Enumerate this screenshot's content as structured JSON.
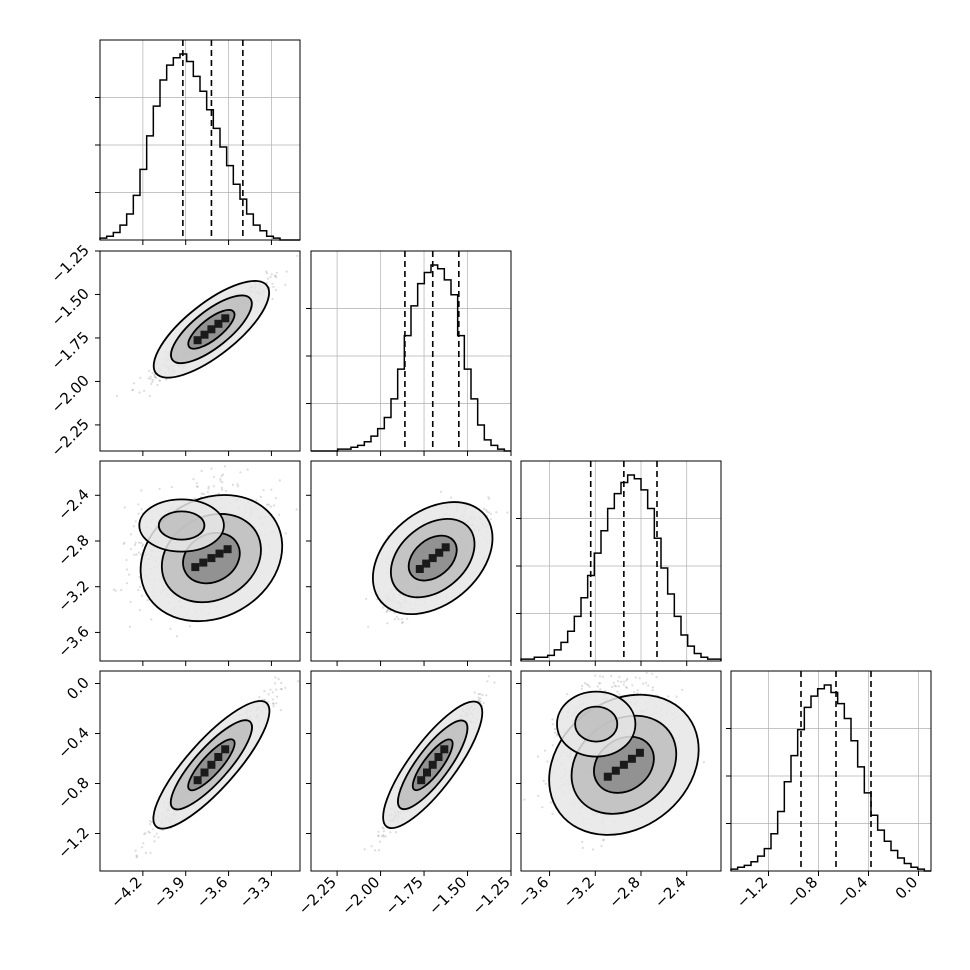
{
  "chart_data": {
    "type": "corner",
    "n_params": 4,
    "params": [
      {
        "range": [
          -4.5,
          -3.1
        ],
        "ticks": [
          -4.2,
          -3.9,
          -3.6,
          -3.3
        ],
        "tick_labels": [
          "−4.2",
          "−3.9",
          "−3.6",
          "−3.3"
        ],
        "mean": -3.72,
        "sd": 0.19,
        "quantiles": [
          -3.92,
          -3.72,
          -3.5
        ]
      },
      {
        "range": [
          -2.4,
          -1.25
        ],
        "ticks": [
          -2.25,
          -2.0,
          -1.75,
          -1.5,
          -1.25
        ],
        "tick_labels": [
          "−2.25",
          "−2.00",
          "−1.75",
          "−1.50",
          "−1.25"
        ],
        "mean": -1.7,
        "sd": 0.13,
        "quantiles": [
          -1.86,
          -1.7,
          -1.55
        ]
      },
      {
        "range": [
          -3.85,
          -2.1
        ],
        "ticks": [
          -3.6,
          -3.2,
          -2.8,
          -2.4
        ],
        "tick_labels": [
          "−3.6",
          "−3.2",
          "−2.8",
          "−2.4"
        ],
        "mean": -2.95,
        "sd": 0.22,
        "quantiles": [
          -3.24,
          -2.95,
          -2.66
        ]
      },
      {
        "range": [
          -1.5,
          0.1
        ],
        "ticks": [
          -1.2,
          -0.8,
          -0.4,
          0.0
        ],
        "tick_labels": [
          "−1.2",
          "−0.8",
          "−0.4",
          "0.0"
        ],
        "mean": -0.65,
        "sd": 0.25,
        "quantiles": [
          -0.94,
          -0.66,
          -0.38
        ]
      }
    ],
    "histograms": [
      {
        "param": 0,
        "bins": 30,
        "counts": [
          1,
          2,
          4,
          8,
          14,
          24,
          38,
          56,
          72,
          86,
          94,
          98,
          100,
          96,
          88,
          80,
          70,
          60,
          50,
          40,
          30,
          22,
          14,
          8,
          5,
          2,
          1,
          0,
          0,
          0
        ]
      },
      {
        "param": 1,
        "bins": 30,
        "counts": [
          0,
          0,
          0,
          0,
          1,
          1,
          2,
          3,
          5,
          8,
          12,
          18,
          28,
          44,
          62,
          78,
          90,
          96,
          100,
          98,
          92,
          84,
          62,
          44,
          28,
          14,
          6,
          3,
          1,
          0
        ]
      },
      {
        "param": 2,
        "bins": 30,
        "counts": [
          1,
          1,
          2,
          2,
          3,
          6,
          10,
          16,
          24,
          34,
          46,
          58,
          70,
          82,
          90,
          96,
          100,
          98,
          92,
          82,
          66,
          50,
          36,
          24,
          14,
          8,
          4,
          2,
          1,
          1
        ]
      },
      {
        "param": 3,
        "bins": 30,
        "counts": [
          1,
          2,
          3,
          5,
          8,
          12,
          20,
          32,
          48,
          62,
          76,
          88,
          94,
          98,
          100,
          96,
          90,
          82,
          70,
          56,
          42,
          30,
          22,
          16,
          11,
          7,
          4,
          2,
          1,
          0
        ]
      }
    ],
    "grid": true,
    "quantile_lines": "dashed",
    "contour_levels": 3,
    "colors": {
      "line": "#000000",
      "scatter": "#9a9a9a",
      "grid": "#b0b0b0",
      "fill": "#6e6e6e"
    }
  }
}
